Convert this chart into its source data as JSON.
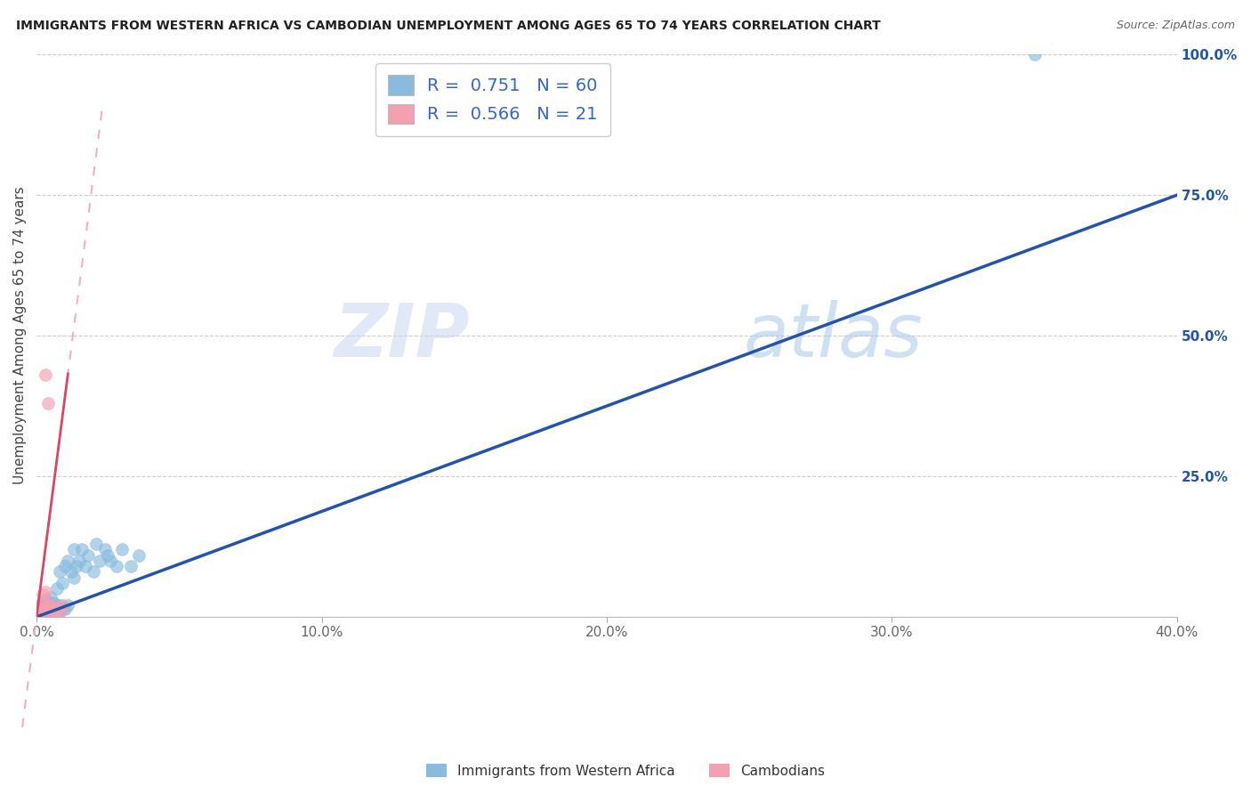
{
  "title": "IMMIGRANTS FROM WESTERN AFRICA VS CAMBODIAN UNEMPLOYMENT AMONG AGES 65 TO 74 YEARS CORRELATION CHART",
  "source": "Source: ZipAtlas.com",
  "ylabel": "Unemployment Among Ages 65 to 74 years",
  "xlim": [
    0.0,
    0.4
  ],
  "ylim": [
    0.0,
    1.0
  ],
  "xticks": [
    0.0,
    0.1,
    0.2,
    0.3,
    0.4
  ],
  "xticklabels": [
    "0.0%",
    "10.0%",
    "20.0%",
    "30.0%",
    "40.0%"
  ],
  "yticks_right": [
    0.0,
    0.25,
    0.5,
    0.75,
    1.0
  ],
  "yticklabels_right": [
    "",
    "25.0%",
    "50.0%",
    "75.0%",
    "100.0%"
  ],
  "legend1_label": "Immigrants from Western Africa",
  "legend2_label": "Cambodians",
  "R1": 0.751,
  "N1": 60,
  "R2": 0.566,
  "N2": 21,
  "blue_color": "#88bbdd",
  "blue_line_color": "#2255aa",
  "pink_color": "#f4a0b0",
  "pink_line_color": "#dd4466",
  "pink_dash_color": "#f0b0c0",
  "watermark_zip": "ZIP",
  "watermark_atlas": "atlas",
  "blue_scatter_x": [
    0.0005,
    0.001,
    0.001,
    0.001,
    0.001,
    0.0015,
    0.0015,
    0.002,
    0.002,
    0.002,
    0.002,
    0.002,
    0.0025,
    0.003,
    0.003,
    0.003,
    0.003,
    0.003,
    0.004,
    0.004,
    0.004,
    0.004,
    0.005,
    0.005,
    0.005,
    0.005,
    0.006,
    0.006,
    0.006,
    0.007,
    0.007,
    0.007,
    0.008,
    0.008,
    0.008,
    0.009,
    0.009,
    0.01,
    0.01,
    0.011,
    0.011,
    0.012,
    0.013,
    0.013,
    0.014,
    0.015,
    0.016,
    0.017,
    0.018,
    0.02,
    0.021,
    0.022,
    0.024,
    0.025,
    0.026,
    0.028,
    0.03,
    0.033,
    0.036,
    0.35
  ],
  "blue_scatter_y": [
    0.01,
    0.005,
    0.01,
    0.015,
    0.02,
    0.005,
    0.01,
    0.005,
    0.008,
    0.012,
    0.018,
    0.025,
    0.01,
    0.005,
    0.01,
    0.015,
    0.02,
    0.03,
    0.008,
    0.012,
    0.018,
    0.025,
    0.005,
    0.01,
    0.015,
    0.035,
    0.008,
    0.015,
    0.025,
    0.01,
    0.02,
    0.05,
    0.01,
    0.02,
    0.08,
    0.015,
    0.06,
    0.015,
    0.09,
    0.02,
    0.1,
    0.08,
    0.07,
    0.12,
    0.09,
    0.1,
    0.12,
    0.09,
    0.11,
    0.08,
    0.13,
    0.1,
    0.12,
    0.11,
    0.1,
    0.09,
    0.12,
    0.09,
    0.11,
    1.0
  ],
  "pink_scatter_x": [
    0.0005,
    0.001,
    0.001,
    0.001,
    0.0015,
    0.002,
    0.002,
    0.002,
    0.003,
    0.003,
    0.003,
    0.003,
    0.004,
    0.004,
    0.004,
    0.005,
    0.005,
    0.006,
    0.007,
    0.008,
    0.009
  ],
  "pink_scatter_y": [
    0.01,
    0.005,
    0.01,
    0.02,
    0.005,
    0.008,
    0.015,
    0.04,
    0.01,
    0.02,
    0.045,
    0.43,
    0.015,
    0.02,
    0.38,
    0.01,
    0.02,
    0.008,
    0.015,
    0.01,
    0.02
  ],
  "blue_line_x": [
    0.0,
    0.4
  ],
  "blue_line_y": [
    0.0,
    0.75
  ],
  "pink_line_x": [
    0.0,
    0.014
  ],
  "pink_line_y": [
    0.0,
    0.55
  ]
}
